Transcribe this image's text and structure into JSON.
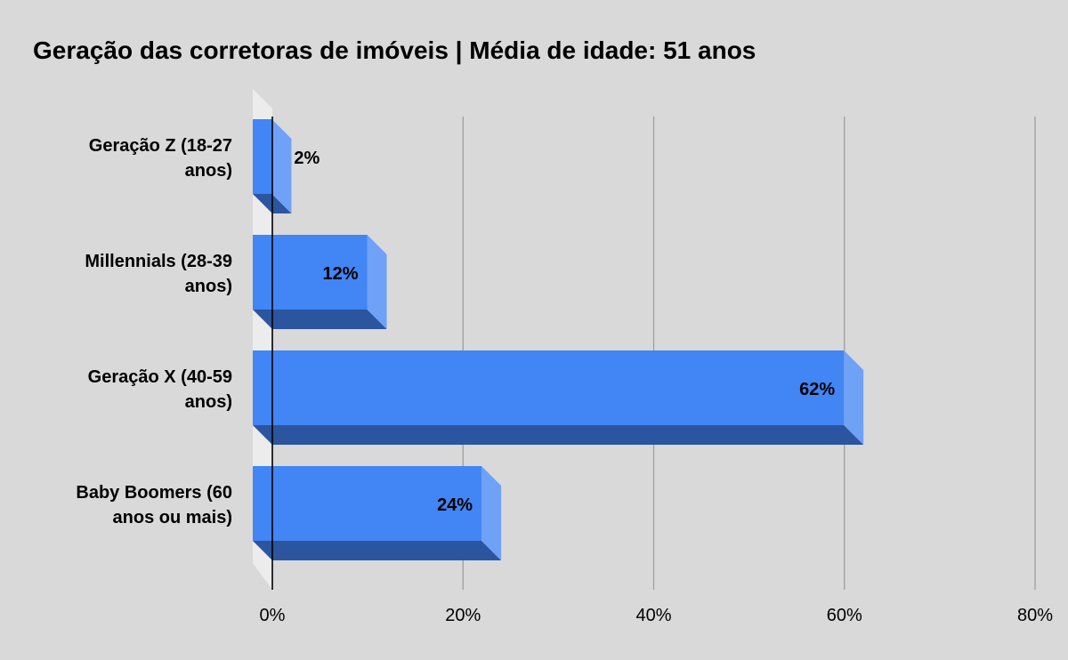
{
  "chart_data": {
    "type": "bar",
    "orientation": "horizontal",
    "style": "3d",
    "title": "Geração das corretoras de imóveis | Média de idade: 51 anos",
    "categories": [
      [
        "Geração Z (18-27",
        "anos)"
      ],
      [
        "Millennials (28-39",
        "anos)"
      ],
      [
        "Geração X (40-59",
        "anos)"
      ],
      [
        "Baby Boomers (60",
        "anos ou mais)"
      ]
    ],
    "values": [
      2,
      12,
      62,
      24
    ],
    "data_labels": [
      "2%",
      "12%",
      "62%",
      "24%"
    ],
    "xlim": [
      0,
      80
    ],
    "xticks": [
      0,
      20,
      40,
      60,
      80
    ],
    "xtick_labels": [
      "0%",
      "20%",
      "40%",
      "60%",
      "80%"
    ],
    "grid": "vertical",
    "colors": {
      "background": "#d9d9d9",
      "bar_front": "#4285f4",
      "bar_side": "#6fa1f7",
      "bar_bottom": "#2c55a0",
      "floor": "#ececec",
      "grid": "#9e9e9e",
      "axis": "#000000"
    }
  }
}
